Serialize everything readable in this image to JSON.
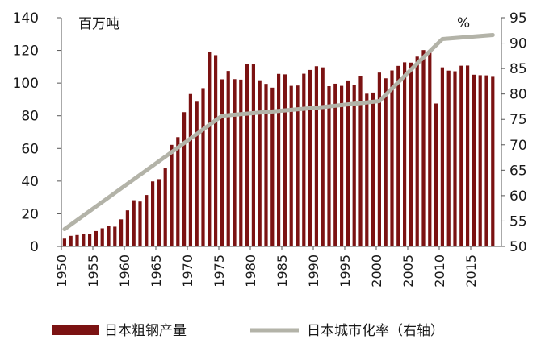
{
  "chart_data": {
    "type": "bar",
    "left_unit": "百万吨",
    "right_unit": "%",
    "x": [
      1950,
      1951,
      1952,
      1953,
      1954,
      1955,
      1956,
      1957,
      1958,
      1959,
      1960,
      1961,
      1962,
      1963,
      1964,
      1965,
      1966,
      1967,
      1968,
      1969,
      1970,
      1971,
      1972,
      1973,
      1974,
      1975,
      1976,
      1977,
      1978,
      1979,
      1980,
      1981,
      1982,
      1983,
      1984,
      1985,
      1986,
      1987,
      1988,
      1989,
      1990,
      1991,
      1992,
      1993,
      1994,
      1995,
      1996,
      1997,
      1998,
      1999,
      2000,
      2001,
      2002,
      2003,
      2004,
      2005,
      2006,
      2007,
      2008,
      2009,
      2010,
      2011,
      2012,
      2013,
      2014,
      2015,
      2016,
      2017,
      2018
    ],
    "x_ticks": [
      1950,
      1955,
      1960,
      1965,
      1970,
      1975,
      1980,
      1985,
      1990,
      1995,
      2000,
      2005,
      2010,
      2015
    ],
    "ylim_left": [
      0,
      140
    ],
    "yticks_left": [
      0,
      20,
      40,
      60,
      80,
      100,
      120,
      140
    ],
    "ylim_right": [
      50,
      95
    ],
    "yticks_right": [
      50,
      55,
      60,
      65,
      70,
      75,
      80,
      85,
      90,
      95
    ],
    "series": [
      {
        "name": "日本粗钢产量",
        "type": "bar",
        "axis": "left",
        "color": "#7b1212",
        "values": [
          4.8,
          6.5,
          7.0,
          7.7,
          7.8,
          9.4,
          11.1,
          12.6,
          12.1,
          16.6,
          22.1,
          28.3,
          27.5,
          31.5,
          39.8,
          41.2,
          47.8,
          62.2,
          66.9,
          82.2,
          93.3,
          88.6,
          96.9,
          119.3,
          117.1,
          102.3,
          107.4,
          102.4,
          102.1,
          111.7,
          111.4,
          101.7,
          99.5,
          97.2,
          105.6,
          105.3,
          98.3,
          98.5,
          105.7,
          108.0,
          110.3,
          109.6,
          98.1,
          99.6,
          98.3,
          101.6,
          98.8,
          104.5,
          93.5,
          94.2,
          106.4,
          102.9,
          107.7,
          110.5,
          112.7,
          112.5,
          116.2,
          120.2,
          118.7,
          87.5,
          109.6,
          107.6,
          107.2,
          110.6,
          110.7,
          105.1,
          104.8,
          104.7,
          104.3
        ]
      },
      {
        "name": "日本城市化率（右轴）",
        "type": "line",
        "axis": "right",
        "color": "#b3b3a8",
        "points": [
          [
            1950,
            53.4
          ],
          [
            1975,
            75.7
          ],
          [
            1990,
            77.3
          ],
          [
            2000,
            78.6
          ],
          [
            2006,
            86.0
          ],
          [
            2010,
            90.8
          ],
          [
            2018,
            91.6
          ]
        ]
      }
    ],
    "legend_position": "bottom"
  }
}
